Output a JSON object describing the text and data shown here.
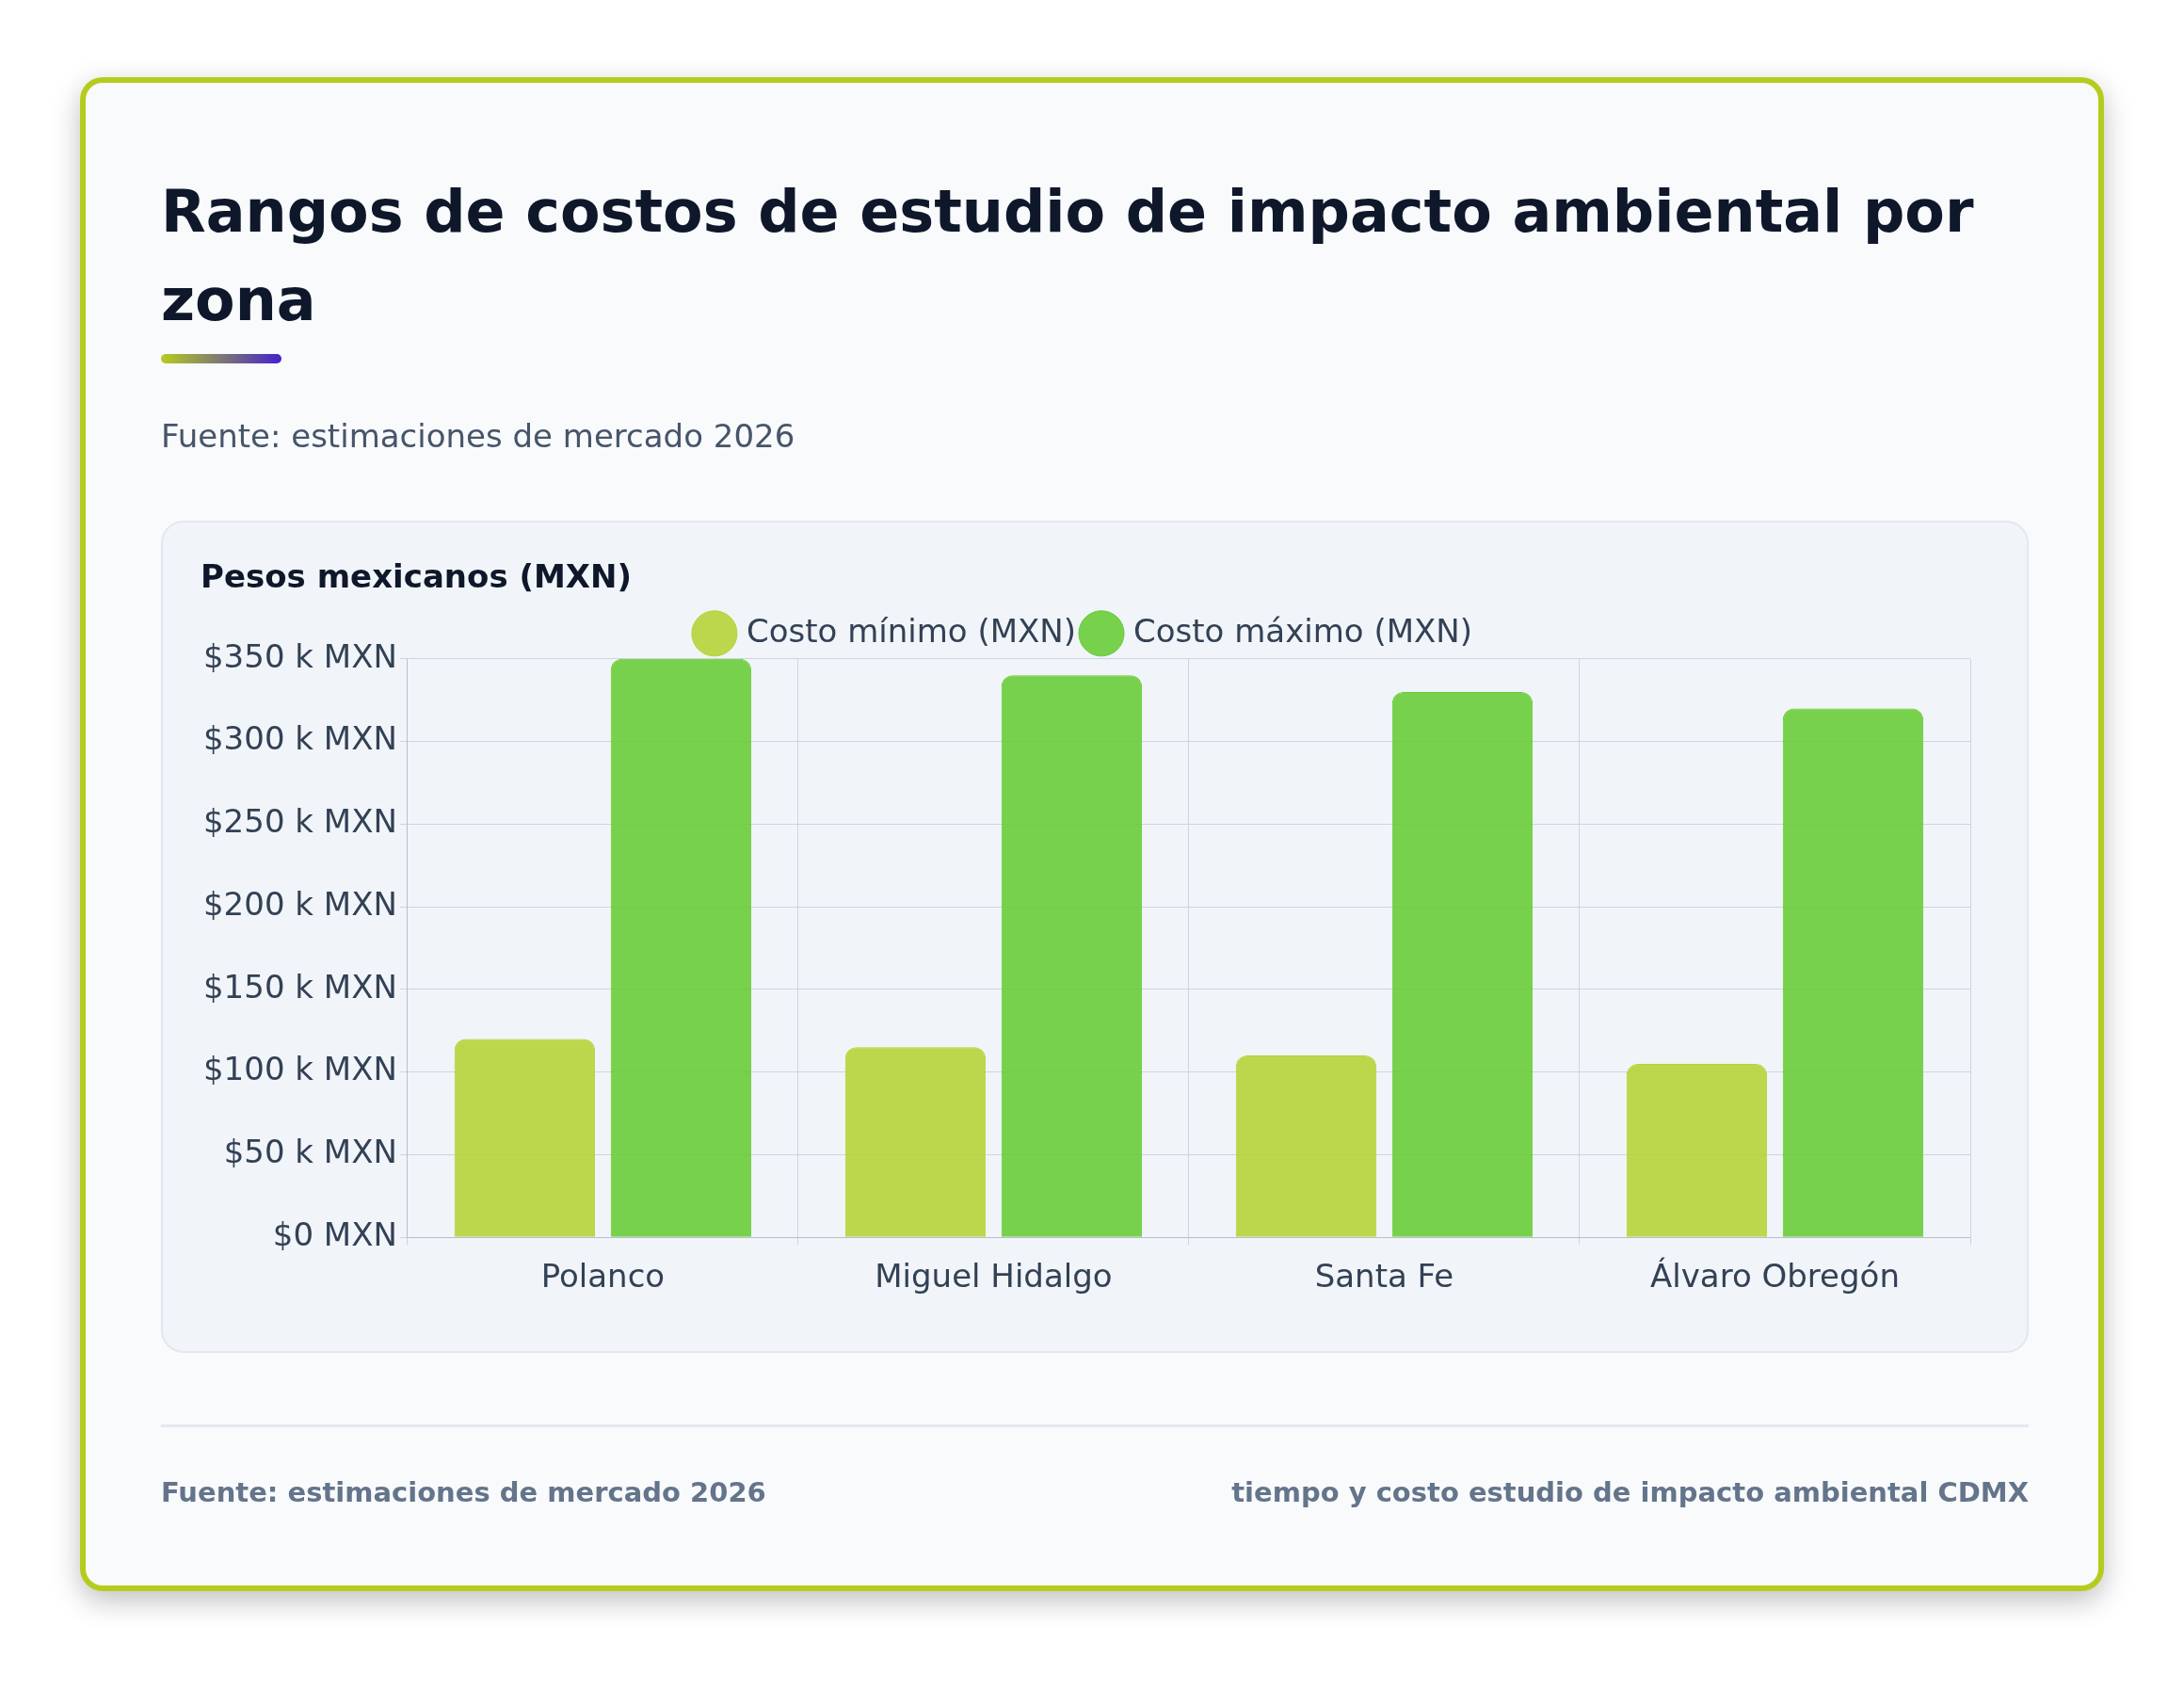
{
  "chart_data": {
    "type": "bar",
    "title": "Rangos de costos de estudio de impacto ambiental por zona",
    "subtitle": "Fuente: estimaciones de mercado 2026",
    "ylabel": "Pesos mexicanos (MXN)",
    "categories": [
      "Polanco",
      "Miguel Hidalgo",
      "Santa Fe",
      "Álvaro Obregón"
    ],
    "series": [
      {
        "name": "Costo mínimo (MXN)",
        "color": "#b5d334",
        "values": [
          120000,
          115000,
          110000,
          105000
        ]
      },
      {
        "name": "Costo máximo (MXN)",
        "color": "#66cc33",
        "values": [
          350000,
          340000,
          330000,
          320000
        ]
      }
    ],
    "ylim": [
      0,
      350000
    ],
    "yticks": [
      {
        "value": 0,
        "label": "$0 MXN"
      },
      {
        "value": 50000,
        "label": "$50 k MXN"
      },
      {
        "value": 100000,
        "label": "$100 k MXN"
      },
      {
        "value": 150000,
        "label": "$150 k MXN"
      },
      {
        "value": 200000,
        "label": "$200 k MXN"
      },
      {
        "value": 250000,
        "label": "$250 k MXN"
      },
      {
        "value": 300000,
        "label": "$300 k MXN"
      },
      {
        "value": 350000,
        "label": "$350 k MXN"
      }
    ],
    "grid": true,
    "legend": "top",
    "annotations": [
      "Fuente: estimaciones de mercado 2026",
      "tiempo y costo estudio de impacto ambiental CDMX"
    ]
  }
}
